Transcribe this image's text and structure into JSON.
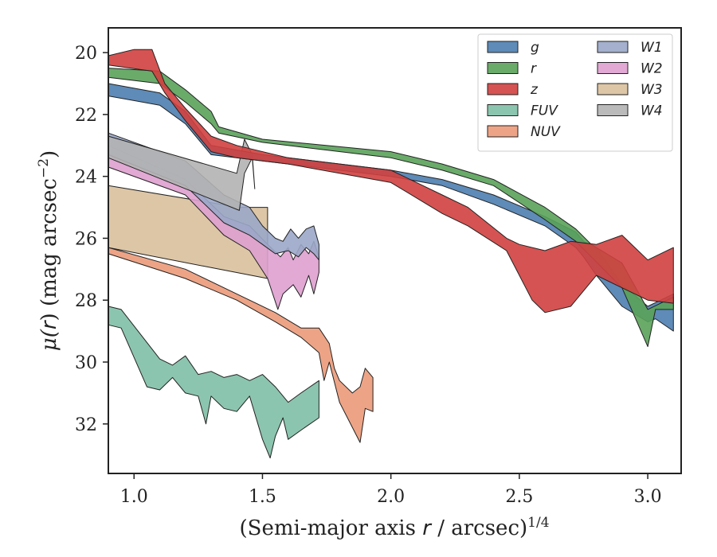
{
  "chart_data": {
    "type": "area",
    "xlabel_main": "(Semi-major axis ",
    "xlabel_var": "r",
    "xlabel_rest": " / arcsec)",
    "xlabel_exp": "1/4",
    "ylabel_main": "μ(",
    "ylabel_var": "r",
    "ylabel_rest": ") (mag arcsec",
    "ylabel_exp": "−2",
    "ylabel_close": ")",
    "xlim": [
      0.9,
      3.13
    ],
    "ylim": [
      33.6,
      19.2
    ],
    "y_inverted": true,
    "xticks": [
      {
        "value": 1.0,
        "label": "1.0"
      },
      {
        "value": 1.5,
        "label": "1.5"
      },
      {
        "value": 2.0,
        "label": "2.0"
      },
      {
        "value": 2.5,
        "label": "2.5"
      },
      {
        "value": 3.0,
        "label": "3.0"
      }
    ],
    "yticks": [
      {
        "value": 20,
        "label": "20"
      },
      {
        "value": 22,
        "label": "22"
      },
      {
        "value": 24,
        "label": "24"
      },
      {
        "value": 26,
        "label": "26"
      },
      {
        "value": 28,
        "label": "28"
      },
      {
        "value": 30,
        "label": "30"
      },
      {
        "value": 32,
        "label": "32"
      }
    ],
    "legend_position": "top-right",
    "series": [
      {
        "name": "W3",
        "color": "#d9c09c",
        "upper": [
          [
            0.9,
            24.3
          ],
          [
            1.41,
            25.0
          ],
          [
            1.52,
            25.0
          ]
        ],
        "lower": [
          [
            0.9,
            26.3
          ],
          [
            1.27,
            26.9
          ],
          [
            1.52,
            27.3
          ]
        ]
      },
      {
        "name": "W2",
        "color": "#dea0cf",
        "upper": [
          [
            0.9,
            23.0
          ],
          [
            1.2,
            24.1
          ],
          [
            1.35,
            25.3
          ],
          [
            1.45,
            25.6
          ],
          [
            1.52,
            26.2
          ],
          [
            1.57,
            26.6
          ],
          [
            1.6,
            26.3
          ],
          [
            1.62,
            26.7
          ],
          [
            1.65,
            26.2
          ],
          [
            1.68,
            26.5
          ],
          [
            1.7,
            26.1
          ],
          [
            1.72,
            26.6
          ]
        ],
        "lower": [
          [
            0.9,
            23.7
          ],
          [
            1.2,
            24.6
          ],
          [
            1.35,
            25.9
          ],
          [
            1.45,
            26.4
          ],
          [
            1.52,
            27.3
          ],
          [
            1.56,
            28.3
          ],
          [
            1.58,
            27.8
          ],
          [
            1.62,
            27.5
          ],
          [
            1.65,
            27.9
          ],
          [
            1.68,
            27.2
          ],
          [
            1.7,
            27.8
          ],
          [
            1.72,
            27.1
          ]
        ]
      },
      {
        "name": "W1",
        "color": "#9aa7c8",
        "upper": [
          [
            0.9,
            22.6
          ],
          [
            1.2,
            23.5
          ],
          [
            1.35,
            24.6
          ],
          [
            1.45,
            25.0
          ],
          [
            1.5,
            25.6
          ],
          [
            1.55,
            26.0
          ],
          [
            1.58,
            26.1
          ],
          [
            1.61,
            25.7
          ],
          [
            1.64,
            26.0
          ],
          [
            1.67,
            25.7
          ],
          [
            1.7,
            25.6
          ],
          [
            1.72,
            26.2
          ]
        ],
        "lower": [
          [
            0.9,
            23.3
          ],
          [
            1.2,
            24.3
          ],
          [
            1.35,
            25.5
          ],
          [
            1.45,
            25.9
          ],
          [
            1.5,
            26.2
          ],
          [
            1.55,
            26.5
          ],
          [
            1.6,
            26.4
          ],
          [
            1.64,
            26.6
          ],
          [
            1.67,
            26.3
          ],
          [
            1.7,
            26.5
          ],
          [
            1.72,
            26.7
          ]
        ]
      },
      {
        "name": "W4",
        "color": "#b2b2b2",
        "upper": [
          [
            0.9,
            22.7
          ],
          [
            1.4,
            23.9
          ],
          [
            1.43,
            22.8
          ],
          [
            1.46,
            23.3
          ],
          [
            1.47,
            24.4
          ]
        ],
        "lower": [
          [
            0.9,
            23.4
          ],
          [
            1.41,
            25.1
          ],
          [
            1.43,
            23.9
          ],
          [
            1.46,
            23.4
          ]
        ]
      },
      {
        "name": "NUV",
        "color": "#eb9a79",
        "upper": [
          [
            0.9,
            26.3
          ],
          [
            1.2,
            27.0
          ],
          [
            1.4,
            27.8
          ],
          [
            1.55,
            28.4
          ],
          [
            1.65,
            28.9
          ],
          [
            1.72,
            28.9
          ],
          [
            1.76,
            29.4
          ],
          [
            1.78,
            30.2
          ],
          [
            1.8,
            30.6
          ],
          [
            1.85,
            31.0
          ],
          [
            1.88,
            30.8
          ],
          [
            1.9,
            30.2
          ],
          [
            1.93,
            30.5
          ]
        ],
        "lower": [
          [
            0.9,
            26.5
          ],
          [
            1.2,
            27.3
          ],
          [
            1.4,
            28.0
          ],
          [
            1.55,
            28.7
          ],
          [
            1.65,
            29.2
          ],
          [
            1.72,
            29.7
          ],
          [
            1.74,
            30.6
          ],
          [
            1.76,
            30.0
          ],
          [
            1.8,
            31.3
          ],
          [
            1.88,
            32.6
          ],
          [
            1.9,
            31.5
          ],
          [
            1.93,
            31.6
          ]
        ]
      },
      {
        "name": "FUV",
        "color": "#7fbfa6",
        "upper": [
          [
            0.9,
            28.2
          ],
          [
            0.95,
            28.3
          ],
          [
            1.1,
            29.9
          ],
          [
            1.15,
            30.1
          ],
          [
            1.2,
            29.8
          ],
          [
            1.25,
            30.4
          ],
          [
            1.3,
            30.3
          ],
          [
            1.35,
            30.5
          ],
          [
            1.4,
            30.4
          ],
          [
            1.45,
            30.6
          ],
          [
            1.5,
            30.4
          ],
          [
            1.55,
            30.8
          ],
          [
            1.6,
            31.3
          ],
          [
            1.65,
            31.0
          ],
          [
            1.72,
            30.6
          ]
        ],
        "lower": [
          [
            0.9,
            28.8
          ],
          [
            0.95,
            28.9
          ],
          [
            1.05,
            30.8
          ],
          [
            1.1,
            30.9
          ],
          [
            1.15,
            30.5
          ],
          [
            1.2,
            31.0
          ],
          [
            1.25,
            31.1
          ],
          [
            1.28,
            32.0
          ],
          [
            1.3,
            31.1
          ],
          [
            1.35,
            31.5
          ],
          [
            1.4,
            31.6
          ],
          [
            1.45,
            31.1
          ],
          [
            1.5,
            32.5
          ],
          [
            1.53,
            33.1
          ],
          [
            1.55,
            32.4
          ],
          [
            1.58,
            31.8
          ],
          [
            1.6,
            32.5
          ],
          [
            1.65,
            32.2
          ],
          [
            1.72,
            31.8
          ]
        ]
      },
      {
        "name": "g",
        "color": "#4c7eb0",
        "upper": [
          [
            0.9,
            21.0
          ],
          [
            1.1,
            21.3
          ],
          [
            1.2,
            21.9
          ],
          [
            1.3,
            23.0
          ],
          [
            1.5,
            23.3
          ],
          [
            2.0,
            23.8
          ],
          [
            2.2,
            24.1
          ],
          [
            2.4,
            24.6
          ],
          [
            2.6,
            25.3
          ],
          [
            2.72,
            25.8
          ],
          [
            2.75,
            26.1
          ],
          [
            2.8,
            26.3
          ],
          [
            2.9,
            27.5
          ],
          [
            3.0,
            28.2
          ],
          [
            3.1,
            27.8
          ]
        ],
        "lower": [
          [
            0.9,
            21.4
          ],
          [
            1.1,
            21.7
          ],
          [
            1.2,
            22.3
          ],
          [
            1.3,
            23.3
          ],
          [
            1.5,
            23.5
          ],
          [
            2.0,
            24.0
          ],
          [
            2.2,
            24.3
          ],
          [
            2.4,
            24.9
          ],
          [
            2.6,
            25.6
          ],
          [
            2.72,
            26.3
          ],
          [
            2.75,
            26.6
          ],
          [
            2.8,
            27.2
          ],
          [
            2.9,
            28.2
          ],
          [
            3.0,
            28.7
          ],
          [
            3.03,
            28.6
          ],
          [
            3.1,
            29.0
          ]
        ]
      },
      {
        "name": "r",
        "color": "#5aa25a",
        "upper": [
          [
            0.9,
            20.5
          ],
          [
            1.1,
            20.6
          ],
          [
            1.2,
            21.2
          ],
          [
            1.3,
            21.9
          ],
          [
            1.33,
            22.4
          ],
          [
            1.5,
            22.8
          ],
          [
            2.0,
            23.2
          ],
          [
            2.2,
            23.6
          ],
          [
            2.4,
            24.1
          ],
          [
            2.6,
            25.0
          ],
          [
            2.72,
            25.7
          ],
          [
            2.78,
            26.2
          ],
          [
            2.9,
            26.8
          ],
          [
            3.0,
            28.3
          ],
          [
            3.1,
            27.9
          ]
        ],
        "lower": [
          [
            0.9,
            20.8
          ],
          [
            1.1,
            21.0
          ],
          [
            1.2,
            21.6
          ],
          [
            1.3,
            22.3
          ],
          [
            1.33,
            22.6
          ],
          [
            1.5,
            22.9
          ],
          [
            2.0,
            23.4
          ],
          [
            2.2,
            23.8
          ],
          [
            2.4,
            24.3
          ],
          [
            2.6,
            25.4
          ],
          [
            2.72,
            26.1
          ],
          [
            2.78,
            26.6
          ],
          [
            2.9,
            27.6
          ],
          [
            3.0,
            29.5
          ],
          [
            3.03,
            28.3
          ],
          [
            3.1,
            28.3
          ]
        ]
      },
      {
        "name": "z",
        "color": "#d0403f",
        "upper": [
          [
            0.9,
            20.1
          ],
          [
            1.0,
            19.9
          ],
          [
            1.07,
            19.9
          ],
          [
            1.12,
            21.0
          ],
          [
            1.2,
            21.8
          ],
          [
            1.3,
            22.7
          ],
          [
            1.4,
            23.0
          ],
          [
            1.6,
            23.4
          ],
          [
            2.0,
            23.8
          ],
          [
            2.2,
            24.6
          ],
          [
            2.3,
            25.0
          ],
          [
            2.45,
            26.0
          ],
          [
            2.5,
            26.2
          ],
          [
            2.6,
            26.4
          ],
          [
            2.7,
            26.1
          ],
          [
            2.8,
            26.2
          ],
          [
            2.9,
            25.9
          ],
          [
            3.0,
            26.7
          ],
          [
            3.1,
            26.3
          ]
        ],
        "lower": [
          [
            0.9,
            20.4
          ],
          [
            1.07,
            20.6
          ],
          [
            1.12,
            21.3
          ],
          [
            1.2,
            22.2
          ],
          [
            1.3,
            23.2
          ],
          [
            1.4,
            23.4
          ],
          [
            1.6,
            23.6
          ],
          [
            2.0,
            24.2
          ],
          [
            2.2,
            25.2
          ],
          [
            2.3,
            25.6
          ],
          [
            2.45,
            26.4
          ],
          [
            2.55,
            28.0
          ],
          [
            2.6,
            28.4
          ],
          [
            2.7,
            28.2
          ],
          [
            2.8,
            27.2
          ],
          [
            2.9,
            27.6
          ],
          [
            3.0,
            28.0
          ],
          [
            3.1,
            28.1
          ]
        ]
      }
    ],
    "legend": {
      "col1": [
        {
          "name": "g",
          "color": "#4c7eb0"
        },
        {
          "name": "r",
          "color": "#5aa25a"
        },
        {
          "name": "z",
          "color": "#d0403f"
        },
        {
          "name": "FUV",
          "color": "#7fbfa6"
        },
        {
          "name": "NUV",
          "color": "#eb9a79"
        }
      ],
      "col2": [
        {
          "name": "W1",
          "color": "#9aa7c8"
        },
        {
          "name": "W2",
          "color": "#dea0cf"
        },
        {
          "name": "W3",
          "color": "#d9c09c"
        },
        {
          "name": "W4",
          "color": "#b2b2b2"
        }
      ]
    }
  }
}
